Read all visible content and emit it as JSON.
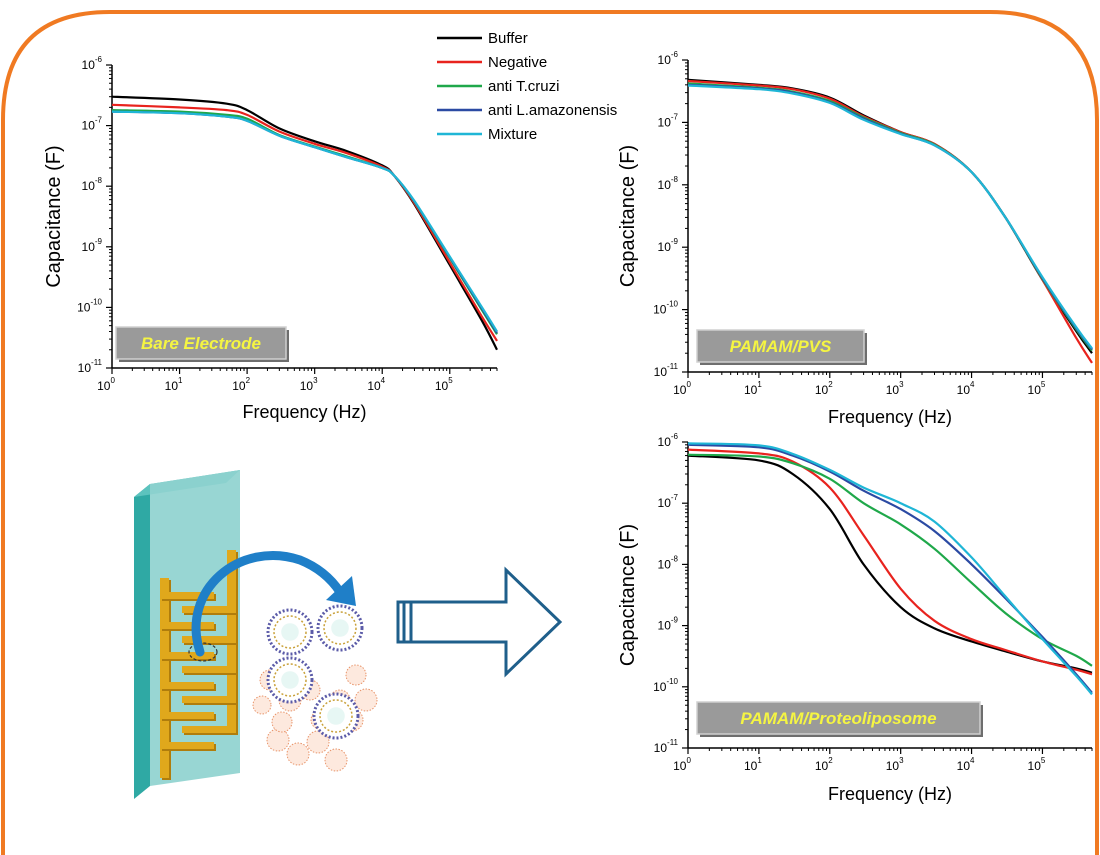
{
  "colors": {
    "frame": "#f07a22",
    "label_bg": "#9a9a9a",
    "label_text": "#f5f542",
    "arrow": "#1f5f8b",
    "glass": "#8fd3cf",
    "gold": "#e0a81c"
  },
  "legend": {
    "entries": [
      {
        "name": "Buffer",
        "color": "#000000"
      },
      {
        "name": "Negative",
        "color": "#e8231e"
      },
      {
        "name": "anti T.cruzi",
        "color": "#1fa84a"
      },
      {
        "name": "anti L.amazonensis",
        "color": "#2b4aa3"
      },
      {
        "name": "Mixture",
        "color": "#1fb6d6"
      }
    ]
  },
  "illustration": {
    "glass_icon": "glass-slide-electrode-icon",
    "liposome_icon": "proteoliposome-cluster-icon",
    "arrow_icon": "curved-arrow-icon",
    "big_arrow_icon": "right-arrow-icon"
  },
  "chart_data": [
    {
      "type": "line",
      "name": "bare",
      "label": "Bare Electrode",
      "xlabel": "Frequency (Hz)",
      "ylabel": "Capacitance (F)",
      "xscale": "log",
      "yscale": "log",
      "xlim": [
        1,
        500000
      ],
      "ylim_exp": [
        -11,
        -6
      ],
      "xticks": [
        {
          "b": "10",
          "e": "0"
        },
        {
          "b": "10",
          "e": "1"
        },
        {
          "b": "10",
          "e": "2"
        },
        {
          "b": "10",
          "e": "3"
        },
        {
          "b": "10",
          "e": "4"
        },
        {
          "b": "10",
          "e": "5"
        }
      ],
      "yticks": [
        {
          "b": "10",
          "e": "-11"
        },
        {
          "b": "10",
          "e": "-10"
        },
        {
          "b": "10",
          "e": "-9"
        },
        {
          "b": "10",
          "e": "-8"
        },
        {
          "b": "10",
          "e": "-7"
        },
        {
          "b": "10",
          "e": "-6"
        }
      ],
      "x": [
        1,
        10,
        50,
        100,
        300,
        1000,
        3000,
        10000,
        15000,
        30000,
        100000,
        300000,
        500000
      ],
      "series": [
        {
          "name": "Buffer",
          "values": [
            3e-07,
            2.7e-07,
            2.3e-07,
            1.8e-07,
            9e-08,
            5.5e-08,
            3.8e-08,
            2.2e-08,
            1.5e-08,
            5e-09,
            5e-10,
            6e-11,
            2e-11
          ]
        },
        {
          "name": "Negative",
          "values": [
            2.2e-07,
            2e-07,
            1.8e-07,
            1.5e-07,
            8e-08,
            5e-08,
            3.5e-08,
            2.1e-08,
            1.5e-08,
            5.2e-09,
            5.5e-10,
            7e-11,
            2.8e-11
          ]
        },
        {
          "name": "anti T.cruzi",
          "values": [
            1.8e-07,
            1.7e-07,
            1.5e-07,
            1.3e-07,
            7e-08,
            4.5e-08,
            3.1e-08,
            2e-08,
            1.5e-08,
            5.5e-09,
            6.5e-10,
            9e-11,
            3.6e-11
          ]
        },
        {
          "name": "anti L.amazonensis",
          "values": [
            1.7e-07,
            1.6e-07,
            1.4e-07,
            1.2e-07,
            6.8e-08,
            4.4e-08,
            3e-08,
            2e-08,
            1.5e-08,
            5.6e-09,
            6.7e-10,
            9.5e-11,
            3.8e-11
          ]
        },
        {
          "name": "Mixture",
          "values": [
            1.7e-07,
            1.6e-07,
            1.4e-07,
            1.2e-07,
            6.8e-08,
            4.4e-08,
            3e-08,
            2e-08,
            1.5e-08,
            5.7e-09,
            6.9e-10,
            1e-10,
            4e-11
          ]
        }
      ]
    },
    {
      "type": "line",
      "name": "pvs",
      "label": "PAMAM/PVS",
      "xlabel": "Frequency (Hz)",
      "ylabel": "Capacitance (F)",
      "xscale": "log",
      "yscale": "log",
      "xlim": [
        1,
        500000
      ],
      "ylim_exp": [
        -11,
        -6
      ],
      "xticks": [
        {
          "b": "10",
          "e": "0"
        },
        {
          "b": "10",
          "e": "1"
        },
        {
          "b": "10",
          "e": "2"
        },
        {
          "b": "10",
          "e": "3"
        },
        {
          "b": "10",
          "e": "4"
        },
        {
          "b": "10",
          "e": "5"
        }
      ],
      "yticks": [
        {
          "b": "10",
          "e": "-11"
        },
        {
          "b": "10",
          "e": "-10"
        },
        {
          "b": "10",
          "e": "-9"
        },
        {
          "b": "10",
          "e": "-8"
        },
        {
          "b": "10",
          "e": "-7"
        },
        {
          "b": "10",
          "e": "-6"
        }
      ],
      "x": [
        1,
        10,
        30,
        100,
        300,
        1000,
        3000,
        10000,
        30000,
        100000,
        300000,
        500000
      ],
      "series": [
        {
          "name": "Buffer",
          "values": [
            4.8e-07,
            4e-07,
            3.5e-07,
            2.5e-07,
            1.3e-07,
            7e-08,
            4.5e-08,
            1.6e-08,
            3e-09,
            3e-10,
            4.5e-11,
            2e-11
          ]
        },
        {
          "name": "Negative",
          "values": [
            4.6e-07,
            3.9e-07,
            3.4e-07,
            2.4e-07,
            1.25e-07,
            7e-08,
            4.5e-08,
            1.6e-08,
            3e-09,
            3e-10,
            3.5e-11,
            1.4e-11
          ]
        },
        {
          "name": "anti T.cruzi",
          "values": [
            4.2e-07,
            3.6e-07,
            3.1e-07,
            2.2e-07,
            1.2e-07,
            6.8e-08,
            4.4e-08,
            1.6e-08,
            3e-09,
            3.1e-10,
            4.8e-11,
            2.2e-11
          ]
        },
        {
          "name": "anti L.amazonensis",
          "values": [
            4e-07,
            3.5e-07,
            3e-07,
            2.1e-07,
            1.15e-07,
            6.6e-08,
            4.3e-08,
            1.6e-08,
            3e-09,
            3.2e-10,
            5e-11,
            2.3e-11
          ]
        },
        {
          "name": "Mixture",
          "values": [
            3.9e-07,
            3.4e-07,
            2.9e-07,
            2.05e-07,
            1.1e-07,
            6.5e-08,
            4.3e-08,
            1.6e-08,
            3e-09,
            3.3e-10,
            5.2e-11,
            2.4e-11
          ]
        }
      ]
    },
    {
      "type": "line",
      "name": "lipo",
      "label": "PAMAM/Proteoliposome",
      "xlabel": "Frequency (Hz)",
      "ylabel": "Capacitance (F)",
      "xscale": "log",
      "yscale": "log",
      "xlim": [
        1,
        500000
      ],
      "ylim_exp": [
        -11,
        -6
      ],
      "xticks": [
        {
          "b": "10",
          "e": "0"
        },
        {
          "b": "10",
          "e": "1"
        },
        {
          "b": "10",
          "e": "2"
        },
        {
          "b": "10",
          "e": "3"
        },
        {
          "b": "10",
          "e": "4"
        },
        {
          "b": "10",
          "e": "5"
        }
      ],
      "yticks": [
        {
          "b": "10",
          "e": "-11"
        },
        {
          "b": "10",
          "e": "-10"
        },
        {
          "b": "10",
          "e": "-9"
        },
        {
          "b": "10",
          "e": "-8"
        },
        {
          "b": "10",
          "e": "-7"
        },
        {
          "b": "10",
          "e": "-6"
        }
      ],
      "x": [
        1,
        10,
        30,
        100,
        300,
        1000,
        3000,
        10000,
        30000,
        100000,
        300000,
        500000
      ],
      "series": [
        {
          "name": "Buffer",
          "values": [
            6e-07,
            5e-07,
            3e-07,
            8e-08,
            1e-08,
            2e-09,
            9e-10,
            5.5e-10,
            3.8e-10,
            2.6e-10,
            2e-10,
            1.7e-10
          ]
        },
        {
          "name": "Negative",
          "values": [
            7.5e-07,
            6.5e-07,
            4.8e-07,
            1.8e-07,
            3e-08,
            4e-09,
            1.2e-09,
            6e-10,
            4e-10,
            2.6e-10,
            1.9e-10,
            1.6e-10
          ]
        },
        {
          "name": "anti T.cruzi",
          "values": [
            6.2e-07,
            5.8e-07,
            4.5e-07,
            2.5e-07,
            1e-07,
            4.5e-08,
            1.8e-08,
            5e-09,
            1.6e-09,
            6e-10,
            3.2e-10,
            2.2e-10
          ]
        },
        {
          "name": "anti L.amazonensis",
          "values": [
            9e-07,
            8.2e-07,
            6e-07,
            3.3e-07,
            1.6e-07,
            8e-08,
            3.5e-08,
            1e-08,
            2.8e-09,
            6.5e-10,
            1.6e-10,
            8e-11
          ]
        },
        {
          "name": "Mixture",
          "values": [
            9.5e-07,
            8.8e-07,
            6.4e-07,
            3.5e-07,
            1.8e-07,
            1e-07,
            5e-08,
            1.3e-08,
            3e-09,
            6e-10,
            1.5e-10,
            7.5e-11
          ]
        }
      ]
    }
  ]
}
